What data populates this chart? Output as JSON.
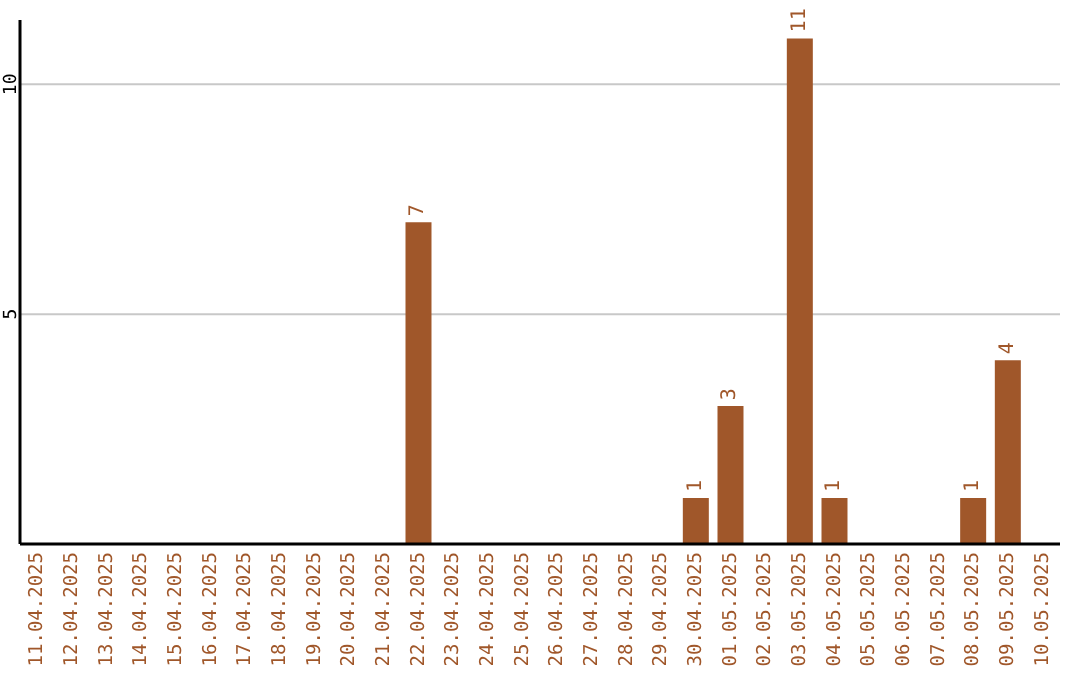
{
  "chart_data": {
    "type": "bar",
    "categories": [
      "11.04.2025",
      "12.04.2025",
      "13.04.2025",
      "14.04.2025",
      "15.04.2025",
      "16.04.2025",
      "17.04.2025",
      "18.04.2025",
      "19.04.2025",
      "20.04.2025",
      "21.04.2025",
      "22.04.2025",
      "23.04.2025",
      "24.04.2025",
      "25.04.2025",
      "26.04.2025",
      "27.04.2025",
      "28.04.2025",
      "29.04.2025",
      "30.04.2025",
      "01.05.2025",
      "02.05.2025",
      "03.05.2025",
      "04.05.2025",
      "05.05.2025",
      "06.05.2025",
      "07.05.2025",
      "08.05.2025",
      "09.05.2025",
      "10.05.2025"
    ],
    "values": [
      0,
      0,
      0,
      0,
      0,
      0,
      0,
      0,
      0,
      0,
      0,
      7,
      0,
      0,
      0,
      0,
      0,
      0,
      0,
      1,
      3,
      0,
      11,
      1,
      0,
      0,
      0,
      1,
      4,
      0
    ],
    "value_labels": [
      null,
      null,
      null,
      null,
      null,
      null,
      null,
      null,
      null,
      null,
      null,
      "7",
      null,
      null,
      null,
      null,
      null,
      null,
      null,
      "1",
      "3",
      null,
      "11",
      "1",
      null,
      null,
      null,
      "1",
      "4",
      null
    ],
    "color": "#a0572a",
    "ylim": [
      0,
      11.4
    ],
    "yticks": [
      5,
      10
    ],
    "grid": "y"
  }
}
